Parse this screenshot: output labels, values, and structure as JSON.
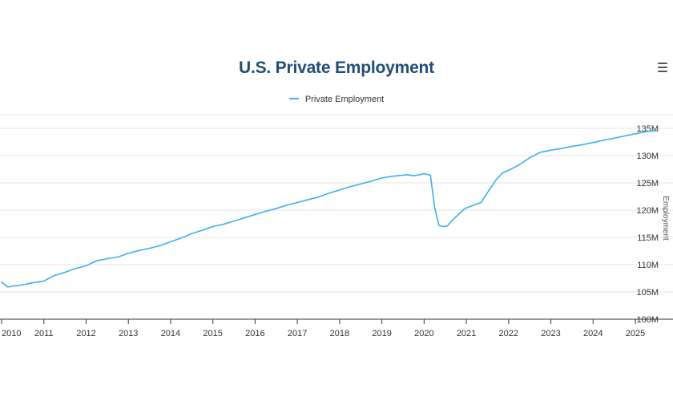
{
  "colors": {
    "title": "#1f4e79",
    "series": "#3bb0ee",
    "grid": "#e6e6e6",
    "axis": "#333333"
  },
  "toolbar": {
    "menu_icon": "hamburger-menu-icon"
  },
  "chart_data": {
    "type": "line",
    "title": "U.S. Private Employment",
    "xlabel": "",
    "ylabel": "Employment",
    "xlim": [
      2010.0,
      2025.55
    ],
    "ylim": [
      100000000,
      137500000
    ],
    "xticks": [
      2010,
      2011,
      2012,
      2013,
      2014,
      2015,
      2016,
      2017,
      2018,
      2019,
      2020,
      2021,
      2022,
      2023,
      2024,
      2025
    ],
    "xtick_labels": [
      "2010",
      "2011",
      "2012",
      "2013",
      "2014",
      "2015",
      "2016",
      "2017",
      "2018",
      "2019",
      "2020",
      "2021",
      "2022",
      "2023",
      "2024",
      "2025"
    ],
    "yticks": [
      100000000,
      105000000,
      110000000,
      115000000,
      120000000,
      125000000,
      130000000,
      135000000
    ],
    "ytick_labels": [
      "100M",
      "105M",
      "110M",
      "115M",
      "120M",
      "125M",
      "130M",
      "135M"
    ],
    "y_axis_side": "right",
    "grid": "horizontal",
    "legend": "top-center",
    "series": [
      {
        "name": "Private Employment",
        "x": [
          2010.0,
          2010.15,
          2010.3,
          2010.5,
          2010.75,
          2011.0,
          2011.25,
          2011.5,
          2011.75,
          2012.0,
          2012.25,
          2012.5,
          2012.75,
          2012.9,
          2013.0,
          2013.25,
          2013.5,
          2013.75,
          2013.9,
          2014.0,
          2014.25,
          2014.5,
          2014.75,
          2015.0,
          2015.25,
          2015.5,
          2015.75,
          2016.0,
          2016.25,
          2016.5,
          2016.75,
          2017.0,
          2017.25,
          2017.5,
          2017.75,
          2018.0,
          2018.25,
          2018.5,
          2018.75,
          2019.0,
          2019.25,
          2019.5,
          2019.6,
          2019.75,
          2019.9,
          2020.0,
          2020.15,
          2020.25,
          2020.35,
          2020.45,
          2020.55,
          2020.65,
          2020.8,
          2020.95,
          2021.0,
          2021.2,
          2021.35,
          2021.5,
          2021.7,
          2021.85,
          2022.0,
          2022.25,
          2022.5,
          2022.75,
          2023.0,
          2023.25,
          2023.5,
          2023.75,
          2024.0,
          2024.25,
          2024.5,
          2024.75,
          2025.0,
          2025.25,
          2025.5
        ],
        "y": [
          106800000,
          105900000,
          106100000,
          106300000,
          106700000,
          107000000,
          108000000,
          108600000,
          109300000,
          109800000,
          110700000,
          111100000,
          111400000,
          111800000,
          112100000,
          112600000,
          113000000,
          113500000,
          113900000,
          114200000,
          114900000,
          115700000,
          116300000,
          117000000,
          117400000,
          118000000,
          118600000,
          119200000,
          119800000,
          120300000,
          120900000,
          121400000,
          121900000,
          122400000,
          123100000,
          123700000,
          124300000,
          124800000,
          125300000,
          125900000,
          126200000,
          126400000,
          126500000,
          126300000,
          126500000,
          126700000,
          126400000,
          120500000,
          117200000,
          117000000,
          117100000,
          118000000,
          119100000,
          120200000,
          120400000,
          121000000,
          121400000,
          123200000,
          125500000,
          126800000,
          127300000,
          128300000,
          129600000,
          130600000,
          131000000,
          131300000,
          131700000,
          132000000,
          132400000,
          132800000,
          133200000,
          133600000,
          134000000,
          134400000,
          134600000
        ]
      }
    ]
  }
}
